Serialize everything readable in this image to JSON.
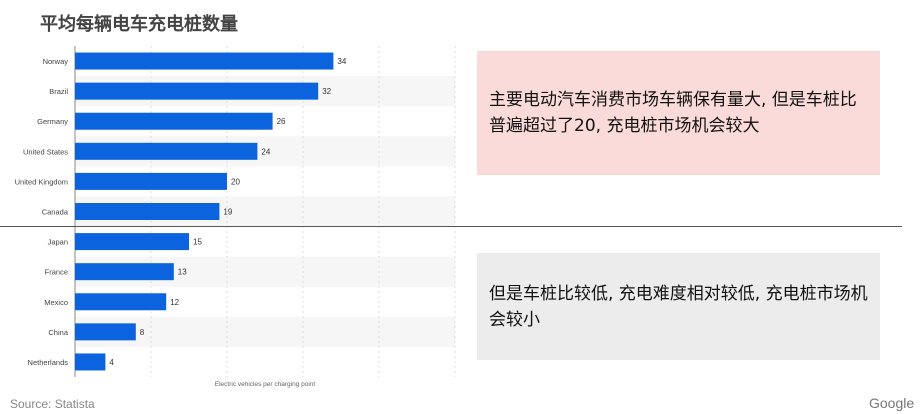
{
  "title": "平均每辆电车充电桩数量",
  "chart_data": {
    "type": "bar",
    "orientation": "horizontal",
    "title": "",
    "categories": [
      "Norway",
      "Brazil",
      "Germany",
      "United States",
      "United Kingdom",
      "Canada",
      "Japan",
      "France",
      "Mexico",
      "China",
      "Netherlands"
    ],
    "values": [
      34,
      32,
      26,
      24,
      20,
      19,
      15,
      13,
      12,
      8,
      4
    ],
    "xlabel": "Electric vehicles per charging point",
    "ylabel": "",
    "xlim": [
      0,
      50
    ],
    "bar_color": "#0b63de",
    "grid": true,
    "legend": "none"
  },
  "annotations": {
    "high_text": "主要电动汽车消费市场车辆保有量大, 但是车桩比普遍超过了20, 充电桩市场机会较大",
    "low_text": "但是车桩比较低, 充电难度相对较低, 充电桩市场机会较小"
  },
  "colors": {
    "high_box": "#fadbda",
    "low_box": "#ececec"
  },
  "footer": {
    "source": "Source: Statista",
    "brand": "Google"
  }
}
